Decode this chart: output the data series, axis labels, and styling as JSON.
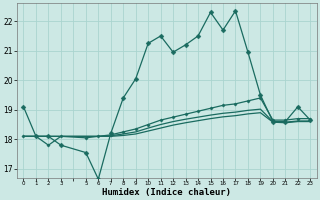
{
  "xlabel": "Humidex (Indice chaleur)",
  "bg_color": "#cce8e4",
  "grid_color": "#aad4cf",
  "line_color": "#1a6b60",
  "xlim": [
    -0.5,
    23.5
  ],
  "ylim": [
    16.7,
    22.6
  ],
  "yticks": [
    17,
    18,
    19,
    20,
    21,
    22
  ],
  "line1_x": [
    0,
    1,
    2,
    3,
    5,
    6,
    7,
    8,
    9,
    10,
    11,
    12,
    13,
    14,
    15,
    16,
    17,
    18,
    19,
    20,
    21,
    22,
    23
  ],
  "line1_y": [
    19.1,
    18.1,
    18.1,
    17.8,
    17.55,
    16.65,
    18.2,
    19.4,
    20.05,
    21.25,
    21.5,
    20.95,
    21.2,
    21.5,
    22.3,
    21.7,
    22.35,
    20.95,
    19.5,
    18.6,
    18.6,
    19.1,
    18.65
  ],
  "line2_x": [
    0,
    1,
    2,
    3,
    5,
    6,
    7,
    8,
    9,
    10,
    11,
    12,
    13,
    14,
    15,
    16,
    17,
    18,
    19,
    20,
    21,
    22,
    23
  ],
  "line2_y": [
    18.1,
    18.1,
    17.8,
    18.1,
    18.05,
    18.1,
    18.15,
    18.25,
    18.35,
    18.5,
    18.65,
    18.75,
    18.85,
    18.95,
    19.05,
    19.15,
    19.2,
    19.3,
    19.4,
    18.65,
    18.65,
    18.7,
    18.7
  ],
  "line3_x": [
    0,
    1,
    2,
    3,
    5,
    6,
    7,
    8,
    9,
    10,
    11,
    12,
    13,
    14,
    15,
    16,
    17,
    18,
    19,
    20,
    21,
    22,
    23
  ],
  "line3_y": [
    18.1,
    18.1,
    18.1,
    18.1,
    18.1,
    18.1,
    18.12,
    18.18,
    18.25,
    18.38,
    18.5,
    18.6,
    18.68,
    18.75,
    18.82,
    18.88,
    18.92,
    18.98,
    19.02,
    18.6,
    18.58,
    18.62,
    18.62
  ],
  "line4_x": [
    0,
    1,
    2,
    3,
    5,
    6,
    7,
    8,
    9,
    10,
    11,
    12,
    13,
    14,
    15,
    16,
    17,
    18,
    19,
    20,
    21,
    22,
    23
  ],
  "line4_y": [
    18.1,
    18.1,
    18.1,
    18.1,
    18.1,
    18.1,
    18.1,
    18.13,
    18.18,
    18.28,
    18.38,
    18.48,
    18.56,
    18.63,
    18.7,
    18.76,
    18.8,
    18.86,
    18.9,
    18.58,
    18.56,
    18.6,
    18.6
  ]
}
